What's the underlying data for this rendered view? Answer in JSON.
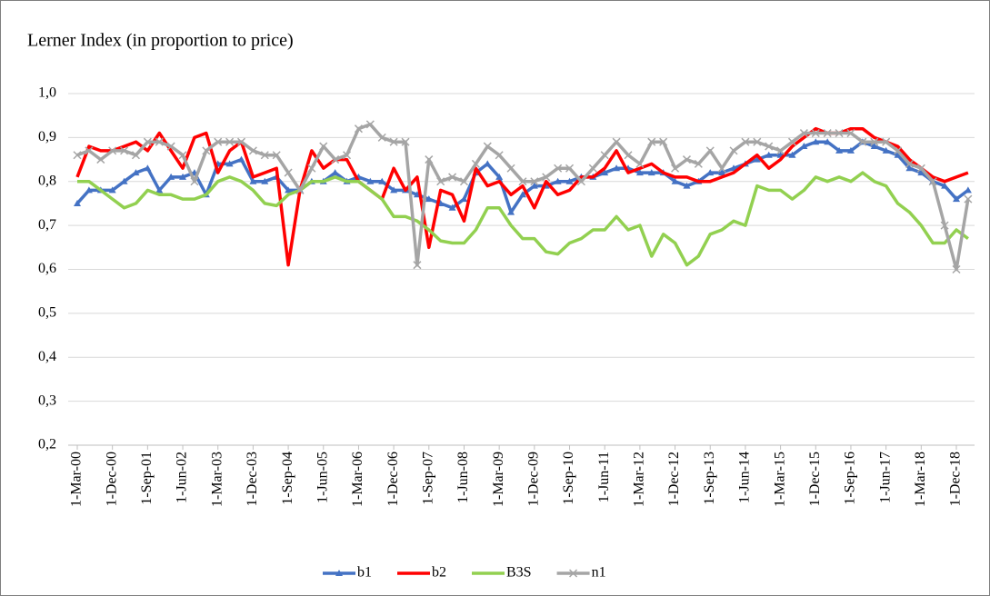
{
  "chart_data": {
    "type": "line",
    "title": "Lerner Index (in proportion  to price)",
    "categories": [
      "1-Mar-00",
      null,
      null,
      "1-Dec-00",
      null,
      null,
      "1-Sep-01",
      null,
      null,
      "1-Jun-02",
      null,
      null,
      "1-Mar-03",
      null,
      null,
      "1-Dec-03",
      null,
      null,
      "1-Sep-04",
      null,
      null,
      "1-Jun-05",
      null,
      null,
      "1-Mar-06",
      null,
      null,
      "1-Dec-06",
      null,
      null,
      "1-Sep-07",
      null,
      null,
      "1-Jun-08",
      null,
      null,
      "1-Mar-09",
      null,
      null,
      "1-Dec-09",
      null,
      null,
      "1-Sep-10",
      null,
      null,
      "1-Jun-11",
      null,
      null,
      "1-Mar-12",
      null,
      null,
      "1-Dec-12",
      null,
      null,
      "1-Sep-13",
      null,
      null,
      "1-Jun-14",
      null,
      null,
      "1-Mar-15",
      null,
      null,
      "1-Dec-15",
      null,
      null,
      "1-Sep-16",
      null,
      null,
      "1-Jun-17",
      null,
      null,
      "1-Mar-18",
      null,
      null,
      "1-Dec-18",
      null
    ],
    "ylim": [
      0.2,
      1.0
    ],
    "yticks": [
      {
        "value": 0.2,
        "label": "0,2"
      },
      {
        "value": 0.3,
        "label": "0,3"
      },
      {
        "value": 0.4,
        "label": "0,4"
      },
      {
        "value": 0.5,
        "label": "0,5"
      },
      {
        "value": 0.6,
        "label": "0,6"
      },
      {
        "value": 0.7,
        "label": "0,7"
      },
      {
        "value": 0.8,
        "label": "0,8"
      },
      {
        "value": 0.9,
        "label": "0,9"
      },
      {
        "value": 1.0,
        "label": "1,0"
      }
    ],
    "grid": true,
    "legend": "bottom",
    "series": [
      {
        "name": "b1",
        "color": "#4472c4",
        "marker": "triangle",
        "values": [
          0.75,
          0.78,
          0.78,
          0.78,
          0.8,
          0.82,
          0.83,
          0.78,
          0.81,
          0.81,
          0.82,
          0.77,
          0.84,
          0.84,
          0.85,
          0.8,
          0.8,
          0.81,
          0.78,
          0.78,
          0.8,
          0.8,
          0.82,
          0.8,
          0.81,
          0.8,
          0.8,
          0.78,
          0.78,
          0.77,
          0.76,
          0.75,
          0.74,
          0.76,
          0.82,
          0.84,
          0.81,
          0.73,
          0.77,
          0.79,
          0.79,
          0.8,
          0.8,
          0.81,
          0.81,
          0.82,
          0.83,
          0.83,
          0.82,
          0.82,
          0.82,
          0.8,
          0.79,
          0.8,
          0.82,
          0.82,
          0.83,
          0.84,
          0.85,
          0.86,
          0.86,
          0.86,
          0.88,
          0.89,
          0.89,
          0.87,
          0.87,
          0.89,
          0.88,
          0.87,
          0.86,
          0.83,
          0.82,
          0.8,
          0.79,
          0.76,
          0.78
        ]
      },
      {
        "name": "b2",
        "color": "#ff0000",
        "marker": "none",
        "values": [
          0.81,
          0.88,
          0.87,
          0.87,
          0.88,
          0.89,
          0.87,
          0.91,
          0.87,
          0.83,
          0.9,
          0.91,
          0.82,
          0.87,
          0.89,
          0.81,
          0.82,
          0.83,
          0.61,
          0.78,
          0.87,
          0.83,
          0.85,
          0.85,
          0.8,
          0.78,
          0.76,
          0.83,
          0.78,
          0.81,
          0.65,
          0.78,
          0.77,
          0.71,
          0.83,
          0.79,
          0.8,
          0.77,
          0.79,
          0.74,
          0.8,
          0.77,
          0.78,
          0.81,
          0.81,
          0.83,
          0.87,
          0.82,
          0.83,
          0.84,
          0.82,
          0.81,
          0.81,
          0.8,
          0.8,
          0.81,
          0.82,
          0.84,
          0.86,
          0.83,
          0.85,
          0.88,
          0.9,
          0.92,
          0.91,
          0.91,
          0.92,
          0.92,
          0.9,
          0.89,
          0.88,
          0.85,
          0.83,
          0.81,
          0.8,
          0.81,
          0.82
        ]
      },
      {
        "name": "B3S",
        "color": "#92d050",
        "marker": "none",
        "values": [
          0.8,
          0.8,
          0.78,
          0.76,
          0.74,
          0.75,
          0.78,
          0.77,
          0.77,
          0.76,
          0.76,
          0.77,
          0.8,
          0.81,
          0.8,
          0.78,
          0.75,
          0.745,
          0.77,
          0.78,
          0.8,
          0.8,
          0.81,
          0.8,
          0.8,
          0.78,
          0.76,
          0.72,
          0.72,
          0.71,
          0.69,
          0.665,
          0.66,
          0.66,
          0.69,
          0.74,
          0.74,
          0.7,
          0.67,
          0.67,
          0.64,
          0.635,
          0.66,
          0.67,
          0.69,
          0.69,
          0.72,
          0.69,
          0.7,
          0.63,
          0.68,
          0.66,
          0.61,
          0.63,
          0.68,
          0.69,
          0.71,
          0.7,
          0.79,
          0.78,
          0.78,
          0.76,
          0.78,
          0.81,
          0.8,
          0.81,
          0.8,
          0.82,
          0.8,
          0.79,
          0.75,
          0.73,
          0.7,
          0.66,
          0.66,
          0.69,
          0.67
        ]
      },
      {
        "name": "n1",
        "color": "#a5a5a5",
        "marker": "cross",
        "values": [
          0.86,
          0.87,
          0.85,
          0.87,
          0.87,
          0.86,
          0.89,
          0.89,
          0.88,
          0.86,
          0.8,
          0.87,
          0.89,
          0.89,
          0.89,
          0.87,
          0.86,
          0.86,
          0.82,
          0.78,
          0.83,
          0.88,
          0.85,
          0.86,
          0.92,
          0.93,
          0.9,
          0.89,
          0.89,
          0.61,
          0.85,
          0.8,
          0.81,
          0.8,
          0.84,
          0.88,
          0.86,
          0.83,
          0.8,
          0.8,
          0.81,
          0.83,
          0.83,
          0.8,
          0.83,
          0.86,
          0.89,
          0.86,
          0.84,
          0.89,
          0.89,
          0.83,
          0.85,
          0.84,
          0.87,
          0.83,
          0.87,
          0.89,
          0.89,
          0.88,
          0.87,
          0.89,
          0.91,
          0.91,
          0.91,
          0.91,
          0.91,
          0.89,
          0.89,
          0.89,
          0.87,
          0.84,
          0.83,
          0.8,
          0.7,
          0.6,
          0.76
        ]
      }
    ]
  }
}
